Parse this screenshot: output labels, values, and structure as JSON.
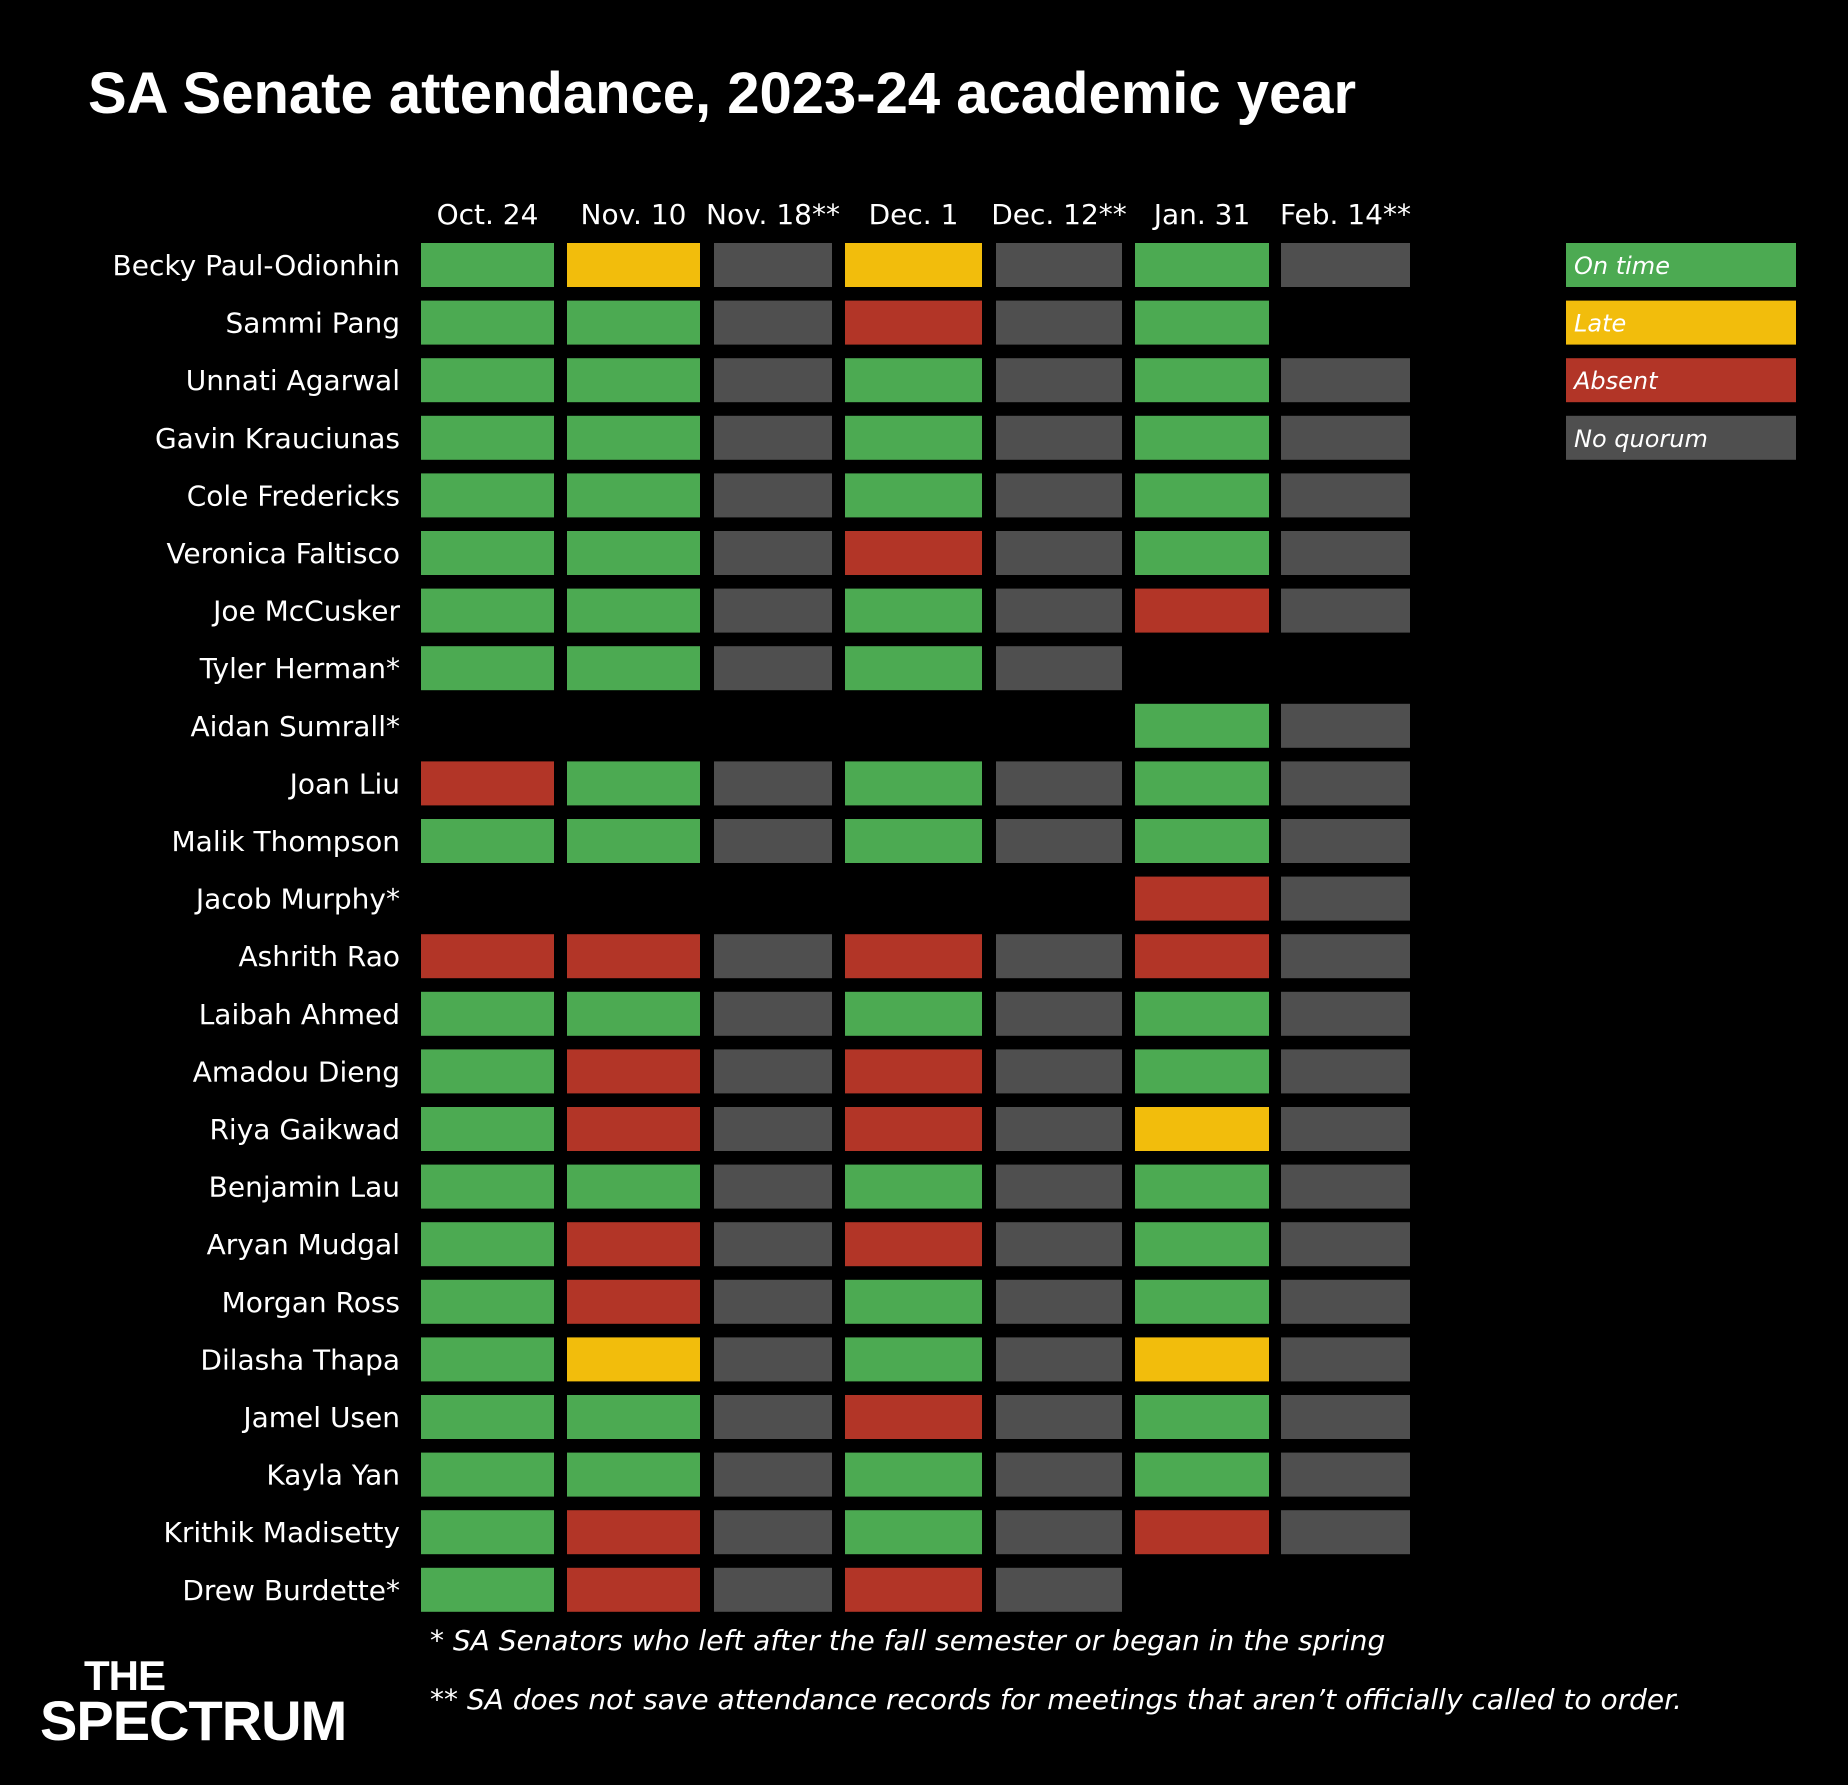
{
  "title": "SA Senate attendance, 2023-24 academic year",
  "chart_data": {
    "type": "heatmap",
    "title": "SA Senate attendance, 2023-24 academic year",
    "columns": [
      "Oct. 24",
      "Nov. 10",
      "Nov. 18**",
      "Dec. 1",
      "Dec. 12**",
      "Jan. 31",
      "Feb. 14**"
    ],
    "categories": {
      "on_time": {
        "label": "On time",
        "color": "#4caa52"
      },
      "late": {
        "label": "Late",
        "color": "#f2bd0c"
      },
      "absent": {
        "label": "Absent",
        "color": "#b23527"
      },
      "no_quorum": {
        "label": "No quorum",
        "color": "#4f4f4f"
      }
    },
    "legend_order": [
      "on_time",
      "late",
      "absent",
      "no_quorum"
    ],
    "legend_position": "top-right",
    "rows": [
      {
        "name": "Becky Paul-Odionhin",
        "status": [
          "on_time",
          "late",
          "no_quorum",
          "late",
          "no_quorum",
          "on_time",
          "no_quorum"
        ]
      },
      {
        "name": "Sammi Pang",
        "status": [
          "on_time",
          "on_time",
          "no_quorum",
          "absent",
          "no_quorum",
          "on_time",
          null
        ]
      },
      {
        "name": "Unnati Agarwal",
        "status": [
          "on_time",
          "on_time",
          "no_quorum",
          "on_time",
          "no_quorum",
          "on_time",
          "no_quorum"
        ]
      },
      {
        "name": "Gavin Krauciunas",
        "status": [
          "on_time",
          "on_time",
          "no_quorum",
          "on_time",
          "no_quorum",
          "on_time",
          "no_quorum"
        ]
      },
      {
        "name": "Cole Fredericks",
        "status": [
          "on_time",
          "on_time",
          "no_quorum",
          "on_time",
          "no_quorum",
          "on_time",
          "no_quorum"
        ]
      },
      {
        "name": "Veronica Faltisco",
        "status": [
          "on_time",
          "on_time",
          "no_quorum",
          "absent",
          "no_quorum",
          "on_time",
          "no_quorum"
        ]
      },
      {
        "name": "Joe McCusker",
        "status": [
          "on_time",
          "on_time",
          "no_quorum",
          "on_time",
          "no_quorum",
          "absent",
          "no_quorum"
        ]
      },
      {
        "name": "Tyler Herman*",
        "status": [
          "on_time",
          "on_time",
          "no_quorum",
          "on_time",
          "no_quorum",
          null,
          null
        ]
      },
      {
        "name": "Aidan Sumrall*",
        "status": [
          null,
          null,
          null,
          null,
          null,
          "on_time",
          "no_quorum"
        ]
      },
      {
        "name": "Joan Liu",
        "status": [
          "absent",
          "on_time",
          "no_quorum",
          "on_time",
          "no_quorum",
          "on_time",
          "no_quorum"
        ]
      },
      {
        "name": "Malik Thompson",
        "status": [
          "on_time",
          "on_time",
          "no_quorum",
          "on_time",
          "no_quorum",
          "on_time",
          "no_quorum"
        ]
      },
      {
        "name": "Jacob Murphy*",
        "status": [
          null,
          null,
          null,
          null,
          null,
          "absent",
          "no_quorum"
        ]
      },
      {
        "name": "Ashrith Rao",
        "status": [
          "absent",
          "absent",
          "no_quorum",
          "absent",
          "no_quorum",
          "absent",
          "no_quorum"
        ]
      },
      {
        "name": "Laibah Ahmed",
        "status": [
          "on_time",
          "on_time",
          "no_quorum",
          "on_time",
          "no_quorum",
          "on_time",
          "no_quorum"
        ]
      },
      {
        "name": "Amadou Dieng",
        "status": [
          "on_time",
          "absent",
          "no_quorum",
          "absent",
          "no_quorum",
          "on_time",
          "no_quorum"
        ]
      },
      {
        "name": "Riya Gaikwad",
        "status": [
          "on_time",
          "absent",
          "no_quorum",
          "absent",
          "no_quorum",
          "late",
          "no_quorum"
        ]
      },
      {
        "name": "Benjamin Lau",
        "status": [
          "on_time",
          "on_time",
          "no_quorum",
          "on_time",
          "no_quorum",
          "on_time",
          "no_quorum"
        ]
      },
      {
        "name": "Aryan Mudgal",
        "status": [
          "on_time",
          "absent",
          "no_quorum",
          "absent",
          "no_quorum",
          "on_time",
          "no_quorum"
        ]
      },
      {
        "name": "Morgan Ross",
        "status": [
          "on_time",
          "absent",
          "no_quorum",
          "on_time",
          "no_quorum",
          "on_time",
          "no_quorum"
        ]
      },
      {
        "name": "Dilasha Thapa",
        "status": [
          "on_time",
          "late",
          "no_quorum",
          "on_time",
          "no_quorum",
          "late",
          "no_quorum"
        ]
      },
      {
        "name": "Jamel Usen",
        "status": [
          "on_time",
          "on_time",
          "no_quorum",
          "absent",
          "no_quorum",
          "on_time",
          "no_quorum"
        ]
      },
      {
        "name": "Kayla Yan",
        "status": [
          "on_time",
          "on_time",
          "no_quorum",
          "on_time",
          "no_quorum",
          "on_time",
          "no_quorum"
        ]
      },
      {
        "name": "Krithik Madisetty",
        "status": [
          "on_time",
          "absent",
          "no_quorum",
          "on_time",
          "no_quorum",
          "absent",
          "no_quorum"
        ]
      },
      {
        "name": "Drew Burdette*",
        "status": [
          "on_time",
          "absent",
          "no_quorum",
          "absent",
          "no_quorum",
          null,
          null
        ]
      }
    ]
  },
  "footnotes": {
    "single_star": "* SA Senators who left after the fall semester or began in the spring",
    "double_star": "** SA does not save attendance records for meetings that aren’t officially called to order."
  },
  "logo": {
    "line1": "THE",
    "line2": "SPECTRUM"
  }
}
